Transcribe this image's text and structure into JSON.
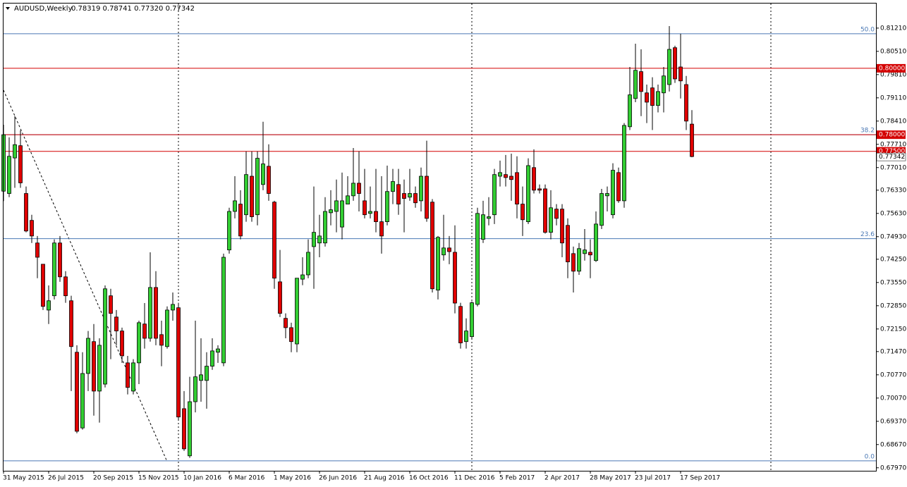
{
  "chart_data": {
    "type": "candlestick",
    "title": "AUDUSD,Weekly",
    "quote": "0.78319 0.78741 0.77320 0.77342",
    "categories": [
      "31 May 2015",
      null,
      null,
      null,
      null,
      null,
      null,
      null,
      "26 Jul 2015",
      null,
      null,
      null,
      null,
      null,
      null,
      null,
      "20 Sep 2015",
      null,
      null,
      null,
      null,
      null,
      null,
      null,
      "15 Nov 2015",
      null,
      null,
      null,
      null,
      null,
      null,
      null,
      "10 Jan 2016",
      null,
      null,
      null,
      null,
      null,
      null,
      null,
      "6 Mar 2016",
      null,
      null,
      null,
      null,
      null,
      null,
      null,
      "1 May 2016",
      null,
      null,
      null,
      null,
      null,
      null,
      null,
      "26 Jun 2016",
      null,
      null,
      null,
      null,
      null,
      null,
      null,
      "21 Aug 2016",
      null,
      null,
      null,
      null,
      null,
      null,
      null,
      "16 Oct 2016",
      null,
      null,
      null,
      null,
      null,
      null,
      null,
      "11 Dec 2016",
      null,
      null,
      null,
      null,
      null,
      null,
      null,
      "5 Feb 2017",
      null,
      null,
      null,
      null,
      null,
      null,
      null,
      "2 Apr 2017",
      null,
      null,
      null,
      null,
      null,
      null,
      null,
      "28 May 2017",
      null,
      null,
      null,
      null,
      null,
      null,
      null,
      "23 Jul 2017",
      null,
      null,
      null,
      null,
      null,
      null,
      null,
      "17 Sep 2017",
      null,
      null
    ],
    "open": [
      0.763,
      0.7623,
      0.773,
      0.7767,
      0.7623,
      0.7542,
      0.7474,
      0.741,
      0.7272,
      0.7315,
      0.7474,
      0.7372,
      0.73,
      0.7145,
      0.6917,
      0.7081,
      0.7177,
      0.7028,
      0.7049,
      0.7315,
      0.7251,
      0.7209,
      0.7113,
      0.7028,
      0.7113,
      0.723,
      0.7187,
      0.734,
      0.7198,
      0.7162,
      0.7272,
      0.7279,
      0.6975,
      0.6833,
      0.6996,
      0.706,
      0.706,
      0.7103,
      0.7145,
      0.7113,
      0.7453,
      0.7569,
      0.7591,
      0.7559,
      0.7675,
      0.7559,
      0.765,
      0.7705,
      0.7597,
      0.7357,
      0.7247,
      0.7219,
      0.717,
      0.7365,
      0.7378,
      0.7463,
      0.7474,
      0.7474,
      0.7565,
      0.7569,
      0.7522,
      0.7591,
      0.7616,
      0.7654,
      0.7601,
      0.7563,
      0.7569,
      0.7538,
      0.7538,
      0.7629,
      0.765,
      0.7623,
      0.7612,
      0.7623,
      0.7601,
      0.7675,
      0.7597,
      0.7332,
      0.7438,
      0.7459,
      0.7446,
      0.7283,
      0.7177,
      0.7192,
      0.7289,
      0.7485,
      0.7548,
      0.7559,
      0.7675,
      0.768,
      0.7675,
      0.7686,
      0.7591,
      0.7538,
      0.7701,
      0.7637,
      0.7637,
      0.7506,
      0.7576,
      0.7576,
      0.7527,
      0.7442,
      0.7389,
      0.7442,
      0.7446,
      0.7421,
      0.7527,
      0.7616,
      0.7559,
      0.7686,
      0.7601,
      0.7824,
      0.7909,
      0.799,
      0.7926,
      0.7941,
      0.7888,
      0.7926,
      0.7951,
      0.8062,
      0.8004,
      0.7951,
      0.78319
    ],
    "high": [
      0.783,
      0.7792,
      0.7856,
      0.7813,
      0.7644,
      0.7559,
      0.7495,
      0.741,
      0.7346,
      0.7485,
      0.7495,
      0.7389,
      0.7315,
      0.7166,
      0.7145,
      0.7209,
      0.723,
      0.7187,
      0.7346,
      0.7336,
      0.7272,
      0.7219,
      0.7134,
      0.7124,
      0.724,
      0.7293,
      0.7446,
      0.7389,
      0.724,
      0.7283,
      0.7325,
      0.7294,
      0.7028,
      0.7071,
      0.724,
      0.7187,
      0.7145,
      0.7187,
      0.7166,
      0.7442,
      0.758,
      0.7675,
      0.7633,
      0.775,
      0.775,
      0.775,
      0.7839,
      0.7771,
      0.7601,
      0.7453,
      0.7262,
      0.7234,
      0.7368,
      0.7431,
      0.7485,
      0.7644,
      0.7559,
      0.7612,
      0.7633,
      0.7665,
      0.7686,
      0.7675,
      0.776,
      0.775,
      0.7697,
      0.7644,
      0.7697,
      0.7675,
      0.7707,
      0.7697,
      0.7697,
      0.7665,
      0.7697,
      0.7644,
      0.7701,
      0.7782,
      0.7606,
      0.7495,
      0.7559,
      0.7495,
      0.7527,
      0.7294,
      0.7247,
      0.7298,
      0.758,
      0.7601,
      0.7612,
      0.7697,
      0.7722,
      0.7739,
      0.7743,
      0.7735,
      0.7644,
      0.7729,
      0.7756,
      0.765,
      0.765,
      0.7633,
      0.7591,
      0.7591,
      0.7548,
      0.7463,
      0.7474,
      0.7516,
      0.7485,
      0.7569,
      0.7637,
      0.7644,
      0.7714,
      0.7701,
      0.7835,
      0.8004,
      0.8074,
      0.8057,
      0.7951,
      0.7973,
      0.7951,
      0.8004,
      0.8127,
      0.8068,
      0.8104,
      0.7977,
      0.78741
    ],
    "low": [
      0.76,
      0.7612,
      0.764,
      0.764,
      0.7506,
      0.7474,
      0.7368,
      0.7272,
      0.723,
      0.7304,
      0.7357,
      0.7294,
      0.7028,
      0.6901,
      0.6912,
      0.7028,
      0.6954,
      0.6933,
      0.7039,
      0.7124,
      0.7166,
      0.7113,
      0.7018,
      0.7018,
      0.7049,
      0.7156,
      0.7177,
      0.7166,
      0.7103,
      0.7156,
      0.724,
      0.6943,
      0.6848,
      0.6827,
      0.6964,
      0.6996,
      0.6975,
      0.7092,
      0.7113,
      0.7103,
      0.7442,
      0.7548,
      0.7485,
      0.7538,
      0.7538,
      0.7527,
      0.7633,
      0.7601,
      0.7336,
      0.7251,
      0.7187,
      0.7145,
      0.7145,
      0.7347,
      0.7368,
      0.7336,
      0.7431,
      0.7463,
      0.7527,
      0.7506,
      0.7485,
      0.7591,
      0.7601,
      0.7569,
      0.7548,
      0.7548,
      0.7506,
      0.7442,
      0.7527,
      0.7591,
      0.7559,
      0.7506,
      0.7601,
      0.758,
      0.7569,
      0.7538,
      0.7325,
      0.7304,
      0.7421,
      0.741,
      0.7262,
      0.7156,
      0.7156,
      0.7187,
      0.7283,
      0.7474,
      0.7527,
      0.7531,
      0.7644,
      0.7644,
      0.7601,
      0.7548,
      0.7495,
      0.7531,
      0.7623,
      0.7623,
      0.7502,
      0.7485,
      0.7527,
      0.7431,
      0.7368,
      0.7325,
      0.7378,
      0.7421,
      0.7368,
      0.7417,
      0.7516,
      0.7569,
      0.7548,
      0.7595,
      0.758,
      0.7814,
      0.7898,
      0.7856,
      0.7835,
      0.7814,
      0.7867,
      0.7867,
      0.793,
      0.7956,
      0.7909,
      0.7814,
      0.7732
    ],
    "close": [
      0.78,
      0.7735,
      0.777,
      0.7655,
      0.751,
      0.7495,
      0.7431,
      0.7283,
      0.73,
      0.7474,
      0.7372,
      0.7315,
      0.7162,
      0.6907,
      0.7081,
      0.7187,
      0.7028,
      0.7166,
      0.7336,
      0.7262,
      0.7209,
      0.7134,
      0.7039,
      0.7113,
      0.7234,
      0.7187,
      0.734,
      0.7187,
      0.7166,
      0.7272,
      0.7289,
      0.695,
      0.6854,
      0.6996,
      0.7071,
      0.7077,
      0.7103,
      0.7149,
      0.7155,
      0.7431,
      0.7569,
      0.7601,
      0.7495,
      0.768,
      0.7553,
      0.7729,
      0.7712,
      0.7623,
      0.7368,
      0.7262,
      0.7219,
      0.7177,
      0.7368,
      0.7378,
      0.7446,
      0.7506,
      0.7495,
      0.7569,
      0.7574,
      0.7601,
      0.7601,
      0.7616,
      0.7654,
      0.7623,
      0.7559,
      0.7569,
      0.7538,
      0.7495,
      0.7629,
      0.7659,
      0.7591,
      0.7608,
      0.7623,
      0.7595,
      0.7675,
      0.7548,
      0.7336,
      0.7491,
      0.7459,
      0.7448,
      0.7293,
      0.7173,
      0.7209,
      0.7294,
      0.7563,
      0.7559,
      0.7553,
      0.768,
      0.7686,
      0.7671,
      0.7665,
      0.7591,
      0.7544,
      0.7707,
      0.7633,
      0.7633,
      0.7506,
      0.758,
      0.7548,
      0.7474,
      0.7417,
      0.7389,
      0.7457,
      0.7453,
      0.7438,
      0.7531,
      0.7623,
      0.7623,
      0.7693,
      0.7601,
      0.7828,
      0.792,
      0.7994,
      0.793,
      0.7898,
      0.7888,
      0.793,
      0.7977,
      0.8057,
      0.7968,
      0.7962,
      0.7841,
      0.77342
    ],
    "up_color": "#32cd32",
    "down_color": "#e00000",
    "ylim": [
      0.6788,
      0.8195
    ],
    "yticks": [
      {
        "value": 0.8121,
        "label": "0.81210"
      },
      {
        "value": 0.8051,
        "label": "0.80510"
      },
      {
        "value": 0.7981,
        "label": "0.79810"
      },
      {
        "value": 0.7911,
        "label": "0.79110"
      },
      {
        "value": 0.7841,
        "label": "0.78410"
      },
      {
        "value": 0.7771,
        "label": "0.77710"
      },
      {
        "value": 0.7701,
        "label": "0.77010"
      },
      {
        "value": 0.7633,
        "label": "0.76330"
      },
      {
        "value": 0.7563,
        "label": "0.75630"
      },
      {
        "value": 0.7493,
        "label": "0.74930"
      },
      {
        "value": 0.7425,
        "label": "0.74250"
      },
      {
        "value": 0.7355,
        "label": "0.73550"
      },
      {
        "value": 0.7285,
        "label": "0.72850"
      },
      {
        "value": 0.7215,
        "label": "0.72150"
      },
      {
        "value": 0.7147,
        "label": "0.71470"
      },
      {
        "value": 0.7077,
        "label": "0.70770"
      },
      {
        "value": 0.7007,
        "label": "0.70070"
      },
      {
        "value": 0.6937,
        "label": "0.69370"
      },
      {
        "value": 0.6867,
        "label": "0.68670"
      },
      {
        "value": 0.6797,
        "label": "0.67970"
      }
    ],
    "levels": [
      {
        "value": 0.8,
        "label": "0.80000"
      },
      {
        "value": 0.78,
        "label": "0.78000"
      },
      {
        "value": 0.775,
        "label": "0.77500"
      }
    ],
    "level_color": "#d40000",
    "fib_levels": [
      {
        "value": 0.8104,
        "label": "50.0"
      },
      {
        "value": 0.78,
        "label": "38.2"
      },
      {
        "value": 0.7487,
        "label": "23.6"
      },
      {
        "value": 0.6818,
        "label": "0.0"
      }
    ],
    "fib_color": "#4a78b4"
  }
}
